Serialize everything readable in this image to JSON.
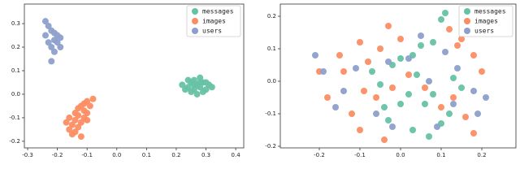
{
  "chart_data": [
    {
      "type": "scatter",
      "legend": "upper right",
      "xlim": [
        -0.311,
        0.427
      ],
      "ylim": [
        -0.228,
        0.383
      ],
      "xticks": [
        -0.3,
        -0.2,
        -0.1,
        {
          "value": 0,
          "label": "0.0"
        },
        0.1,
        0.2,
        0.3,
        0.4
      ],
      "yticks": [
        -0.2,
        -0.1,
        {
          "value": 0,
          "label": "0.0"
        },
        0.1,
        0.2,
        0.3
      ],
      "series": [
        {
          "name": "messages",
          "color": "#66c2a5",
          "x": [
            0.22,
            0.24,
            0.25,
            0.26,
            0.27,
            0.28,
            0.29,
            0.3,
            0.31,
            0.26,
            0.28,
            0.25,
            0.27,
            0.29,
            0.23,
            0.32,
            0.26,
            0.28,
            0.24,
            0.3
          ],
          "y": [
            0.04,
            0.03,
            0.05,
            0.02,
            0.04,
            0.03,
            0.05,
            0.02,
            0.04,
            0.06,
            0.07,
            0.01,
            0.0,
            0.01,
            0.02,
            0.03,
            0.04,
            0.05,
            0.06,
            0.05
          ]
        },
        {
          "name": "images",
          "color": "#fc8d62",
          "x": [
            -0.1,
            -0.08,
            -0.12,
            -0.11,
            -0.13,
            -0.14,
            -0.15,
            -0.16,
            -0.14,
            -0.12,
            -0.1,
            -0.09,
            -0.11,
            -0.13,
            -0.17,
            -0.15,
            -0.12,
            -0.1,
            -0.13,
            -0.16,
            -0.11,
            -0.14
          ],
          "y": [
            -0.03,
            -0.02,
            -0.05,
            -0.07,
            -0.09,
            -0.11,
            -0.13,
            -0.15,
            -0.16,
            -0.12,
            -0.08,
            -0.05,
            -0.1,
            -0.14,
            -0.12,
            -0.17,
            -0.18,
            -0.11,
            -0.06,
            -0.1,
            -0.04,
            -0.08
          ]
        },
        {
          "name": "users",
          "color": "#8da0cb",
          "x": [
            -0.24,
            -0.23,
            -0.22,
            -0.21,
            -0.2,
            -0.19,
            -0.2,
            -0.21,
            -0.24,
            -0.22,
            -0.21,
            -0.22,
            -0.23,
            -0.19
          ],
          "y": [
            0.31,
            0.29,
            0.27,
            0.26,
            0.25,
            0.24,
            0.22,
            0.23,
            0.25,
            0.2,
            0.18,
            0.14,
            0.22,
            0.2
          ]
        }
      ]
    },
    {
      "type": "scatter",
      "legend": "upper right",
      "xlim": [
        -0.296,
        0.284
      ],
      "ylim": [
        -0.205,
        0.2375
      ],
      "xticks": [
        -0.2,
        -0.1,
        {
          "value": 0,
          "label": "0.0"
        },
        0.1,
        0.2
      ],
      "yticks": [
        -0.2,
        -0.1,
        {
          "value": 0,
          "label": "0.0"
        },
        0.1,
        0.2
      ],
      "series": [
        {
          "name": "messages",
          "color": "#66c2a5",
          "x": [
            0.11,
            0.1,
            0.08,
            0.05,
            0.03,
            0.0,
            -0.02,
            0.04,
            -0.05,
            0.02,
            0.0,
            -0.04,
            -0.03,
            0.06,
            0.1,
            0.12,
            0.15,
            0.13,
            0.03,
            0.07,
            0.08,
            -0.07
          ],
          "y": [
            0.21,
            0.19,
            0.12,
            0.11,
            0.08,
            0.07,
            0.05,
            0.02,
            -0.01,
            -0.04,
            -0.07,
            -0.08,
            -0.12,
            -0.07,
            -0.13,
            -0.1,
            -0.02,
            0.01,
            -0.15,
            -0.17,
            -0.04,
            0.03
          ]
        },
        {
          "name": "images",
          "color": "#fc8d62",
          "x": [
            -0.2,
            -0.15,
            -0.1,
            -0.05,
            -0.03,
            0.0,
            0.12,
            0.15,
            0.14,
            0.18,
            0.2,
            -0.18,
            -0.12,
            -0.09,
            -0.06,
            -0.02,
            0.02,
            -0.14,
            -0.08,
            0.06,
            0.1,
            0.16,
            0.18,
            -0.1,
            -0.04,
            0.13
          ],
          "y": [
            0.03,
            0.08,
            0.12,
            0.1,
            0.17,
            0.13,
            0.16,
            0.13,
            0.11,
            0.08,
            0.03,
            -0.05,
            -0.1,
            -0.03,
            -0.05,
            -0.02,
            0.02,
            0.03,
            0.06,
            -0.02,
            -0.08,
            -0.11,
            -0.16,
            -0.15,
            -0.18,
            -0.05
          ]
        },
        {
          "name": "users",
          "color": "#8da0cb",
          "x": [
            -0.21,
            -0.19,
            -0.14,
            -0.11,
            -0.06,
            -0.03,
            0.02,
            0.05,
            0.11,
            0.14,
            0.18,
            0.21,
            0.19,
            0.13,
            0.09,
            -0.02,
            -0.16,
            0.07
          ],
          "y": [
            0.08,
            0.03,
            -0.03,
            0.04,
            -0.1,
            0.06,
            0.07,
            0.14,
            0.09,
            0.04,
            -0.03,
            -0.05,
            -0.1,
            -0.07,
            -0.14,
            -0.14,
            -0.08,
            0.0
          ]
        }
      ]
    }
  ]
}
